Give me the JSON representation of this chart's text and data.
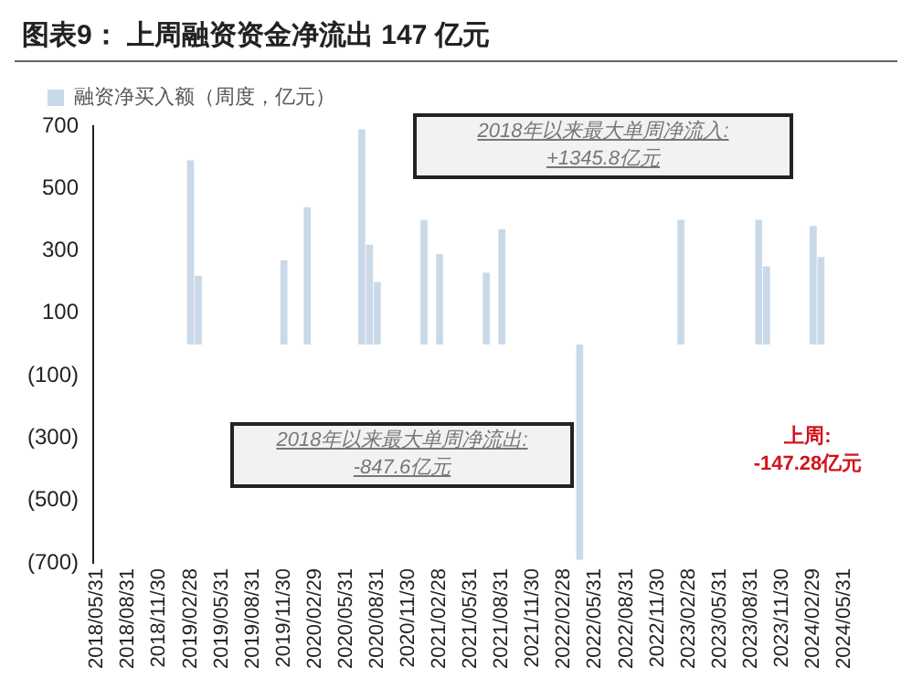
{
  "chart_data": {
    "type": "bar",
    "title": "图表9：  上周融资资金净流出 147 亿元",
    "categories": [
      "2018/05/31",
      null,
      null,
      null,
      "2018/08/31",
      null,
      null,
      null,
      "2018/11/30",
      null,
      null,
      null,
      "2019/02/28",
      null,
      null,
      null,
      "2019/05/31",
      null,
      null,
      null,
      "2019/08/31",
      null,
      null,
      null,
      "2019/11/30",
      null,
      null,
      null,
      "2020/02/29",
      null,
      null,
      null,
      "2020/05/31",
      null,
      null,
      null,
      "2020/08/31",
      null,
      null,
      null,
      "2020/11/30",
      null,
      null,
      null,
      "2021/02/28",
      null,
      null,
      null,
      "2021/05/31",
      null,
      null,
      null,
      "2021/08/31",
      null,
      null,
      null,
      "2021/11/30",
      null,
      null,
      null,
      "2022/02/28",
      null,
      null,
      null,
      "2022/05/31",
      null,
      null,
      null,
      "2022/08/31",
      null,
      null,
      null,
      "2022/11/30",
      null,
      null,
      null,
      "2023/02/28",
      null,
      null,
      null,
      "2023/05/31",
      null,
      null,
      null,
      "2023/08/31",
      null,
      null,
      null,
      "2023/11/30",
      null,
      null,
      null,
      "2024/02/29",
      null,
      null,
      null,
      "2024/05/31",
      null,
      null,
      null
    ],
    "series": [
      {
        "name": "融资净买入额（周度，亿元）",
        "color": "#c9d9e8",
        "values": [
          null,
          null,
          null,
          null,
          null,
          null,
          null,
          null,
          null,
          null,
          null,
          null,
          590,
          220,
          null,
          null,
          null,
          null,
          null,
          null,
          null,
          null,
          null,
          null,
          270,
          null,
          null,
          440,
          null,
          null,
          null,
          null,
          null,
          null,
          690,
          320,
          200,
          null,
          null,
          null,
          null,
          null,
          400,
          null,
          290,
          null,
          null,
          null,
          null,
          null,
          230,
          null,
          370,
          null,
          null,
          null,
          null,
          null,
          null,
          null,
          null,
          null,
          -690,
          null,
          null,
          null,
          null,
          null,
          null,
          null,
          null,
          null,
          null,
          null,
          null,
          400,
          null,
          null,
          null,
          null,
          null,
          null,
          null,
          null,
          null,
          400,
          250,
          null,
          null,
          null,
          null,
          null,
          380,
          280,
          null,
          null,
          null,
          null,
          null,
          null
        ]
      }
    ],
    "ylim": [
      -700,
      700
    ],
    "yticks": [
      700,
      500,
      300,
      100,
      {
        "value": -100,
        "label": "(100)"
      },
      {
        "value": -300,
        "label": "(300)"
      },
      {
        "value": -500,
        "label": "(500)"
      },
      {
        "value": -700,
        "label": "(700)"
      }
    ],
    "grid": false,
    "legend": "top left",
    "annotations": [
      "2018年以来最大单周净流入:\n+1345.8亿元",
      "2018年以来最大单周净流出:\n-847.6亿元",
      "上周:\n-147.28亿元"
    ]
  }
}
